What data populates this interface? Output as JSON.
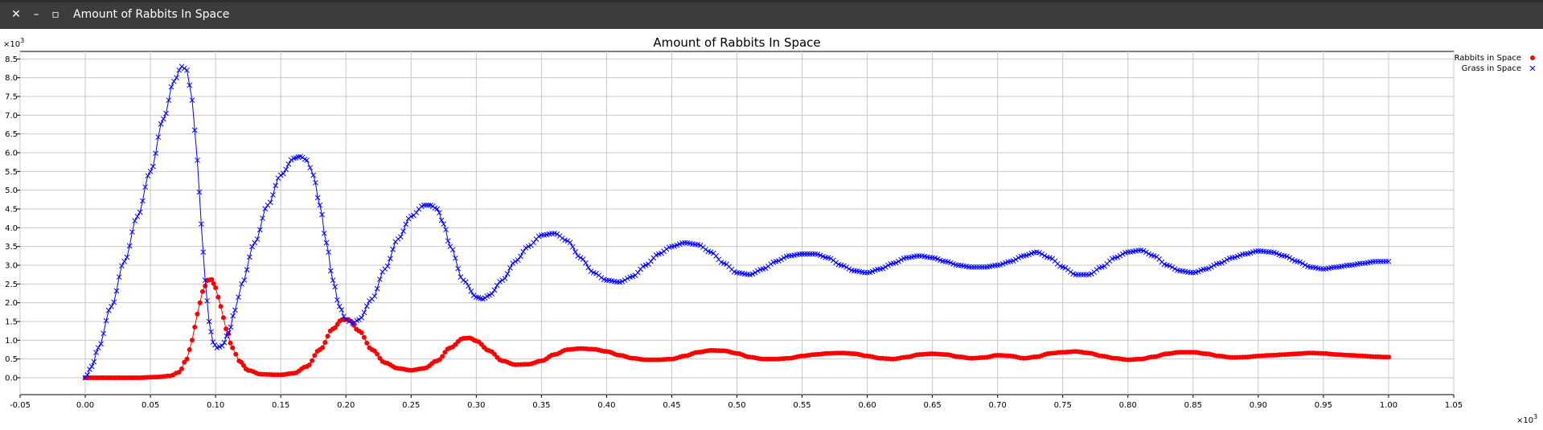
{
  "window": {
    "title": "Amount of Rabbits In Space",
    "close_icon": "close-icon",
    "minimize_icon": "minimize-icon",
    "maximize_icon": "maximize-icon"
  },
  "chart_data": {
    "type": "line",
    "title": "Amount of Rabbits In Space",
    "xlabel": "",
    "ylabel": "",
    "x_multiplier": "×10",
    "x_multiplier_exp": "3",
    "y_multiplier": "×10",
    "y_multiplier_exp": "3",
    "xlim": [
      -0.05,
      1.05
    ],
    "ylim": [
      -0.45,
      8.7
    ],
    "xticks": [
      "-0.05",
      "0.00",
      "0.05",
      "0.10",
      "0.15",
      "0.20",
      "0.25",
      "0.30",
      "0.35",
      "0.40",
      "0.45",
      "0.50",
      "0.55",
      "0.60",
      "0.65",
      "0.70",
      "0.75",
      "0.80",
      "0.85",
      "0.90",
      "0.95",
      "1.00",
      "1.05"
    ],
    "yticks": [
      "0.0",
      "0.5",
      "1.0",
      "1.5",
      "2.0",
      "2.5",
      "3.0",
      "3.5",
      "4.0",
      "4.5",
      "5.0",
      "5.5",
      "6.0",
      "6.5",
      "7.0",
      "7.5",
      "8.0",
      "8.5"
    ],
    "grid": true,
    "legend_position": "right",
    "series": [
      {
        "name": "Rabbits in Space",
        "color": "#ff0000",
        "marker": "circle",
        "x": [
          0.0,
          0.02,
          0.04,
          0.055,
          0.065,
          0.072,
          0.078,
          0.082,
          0.086,
          0.09,
          0.094,
          0.097,
          0.1,
          0.104,
          0.108,
          0.113,
          0.118,
          0.125,
          0.135,
          0.15,
          0.16,
          0.17,
          0.18,
          0.19,
          0.197,
          0.202,
          0.21,
          0.22,
          0.23,
          0.24,
          0.25,
          0.26,
          0.27,
          0.28,
          0.29,
          0.295,
          0.3,
          0.31,
          0.32,
          0.33,
          0.34,
          0.35,
          0.36,
          0.37,
          0.38,
          0.39,
          0.4,
          0.41,
          0.42,
          0.43,
          0.44,
          0.45,
          0.46,
          0.47,
          0.48,
          0.49,
          0.5,
          0.51,
          0.52,
          0.53,
          0.54,
          0.55,
          0.56,
          0.57,
          0.58,
          0.59,
          0.6,
          0.61,
          0.62,
          0.63,
          0.64,
          0.65,
          0.66,
          0.67,
          0.68,
          0.69,
          0.7,
          0.71,
          0.72,
          0.73,
          0.74,
          0.75,
          0.76,
          0.77,
          0.78,
          0.79,
          0.8,
          0.81,
          0.82,
          0.83,
          0.84,
          0.85,
          0.86,
          0.87,
          0.88,
          0.89,
          0.9,
          0.91,
          0.92,
          0.93,
          0.94,
          0.95,
          0.96,
          0.97,
          0.98,
          0.99,
          1.0
        ],
        "y": [
          0.0,
          0.0,
          0.0,
          0.02,
          0.05,
          0.15,
          0.5,
          1.0,
          1.7,
          2.3,
          2.6,
          2.62,
          2.4,
          1.9,
          1.3,
          0.8,
          0.45,
          0.2,
          0.09,
          0.08,
          0.12,
          0.3,
          0.75,
          1.3,
          1.55,
          1.55,
          1.25,
          0.75,
          0.4,
          0.25,
          0.2,
          0.25,
          0.45,
          0.8,
          1.05,
          1.06,
          0.98,
          0.72,
          0.45,
          0.35,
          0.36,
          0.45,
          0.62,
          0.75,
          0.78,
          0.76,
          0.7,
          0.6,
          0.52,
          0.48,
          0.48,
          0.5,
          0.58,
          0.68,
          0.73,
          0.72,
          0.65,
          0.55,
          0.5,
          0.5,
          0.52,
          0.58,
          0.62,
          0.65,
          0.66,
          0.64,
          0.58,
          0.52,
          0.5,
          0.55,
          0.62,
          0.64,
          0.62,
          0.56,
          0.52,
          0.54,
          0.6,
          0.58,
          0.52,
          0.56,
          0.65,
          0.68,
          0.7,
          0.66,
          0.58,
          0.52,
          0.48,
          0.5,
          0.56,
          0.64,
          0.68,
          0.68,
          0.64,
          0.58,
          0.54,
          0.55,
          0.58,
          0.6,
          0.62,
          0.64,
          0.66,
          0.65,
          0.62,
          0.6,
          0.58,
          0.56,
          0.55
        ]
      },
      {
        "name": "Grass in Space",
        "color": "#0000ff",
        "marker": "x",
        "x": [
          0.0,
          0.005,
          0.01,
          0.02,
          0.03,
          0.04,
          0.05,
          0.06,
          0.068,
          0.074,
          0.078,
          0.082,
          0.086,
          0.089,
          0.092,
          0.095,
          0.098,
          0.101,
          0.105,
          0.11,
          0.115,
          0.12,
          0.13,
          0.14,
          0.15,
          0.16,
          0.165,
          0.17,
          0.175,
          0.18,
          0.185,
          0.19,
          0.195,
          0.2,
          0.205,
          0.21,
          0.22,
          0.23,
          0.24,
          0.25,
          0.26,
          0.265,
          0.27,
          0.275,
          0.28,
          0.29,
          0.3,
          0.305,
          0.31,
          0.32,
          0.33,
          0.34,
          0.35,
          0.36,
          0.37,
          0.38,
          0.39,
          0.4,
          0.41,
          0.42,
          0.43,
          0.44,
          0.45,
          0.46,
          0.47,
          0.48,
          0.49,
          0.5,
          0.51,
          0.52,
          0.53,
          0.54,
          0.55,
          0.56,
          0.57,
          0.58,
          0.59,
          0.6,
          0.61,
          0.62,
          0.63,
          0.64,
          0.65,
          0.66,
          0.67,
          0.68,
          0.69,
          0.7,
          0.71,
          0.72,
          0.73,
          0.74,
          0.75,
          0.76,
          0.77,
          0.78,
          0.79,
          0.8,
          0.81,
          0.82,
          0.83,
          0.84,
          0.85,
          0.86,
          0.87,
          0.88,
          0.89,
          0.9,
          0.91,
          0.92,
          0.93,
          0.94,
          0.95,
          0.96,
          0.97,
          0.98,
          0.99,
          1.0
        ],
        "y": [
          0.0,
          0.3,
          0.8,
          1.9,
          3.1,
          4.3,
          5.5,
          6.9,
          7.9,
          8.3,
          8.2,
          7.4,
          5.8,
          4.1,
          2.6,
          1.5,
          0.95,
          0.8,
          0.85,
          1.2,
          1.8,
          2.5,
          3.6,
          4.6,
          5.4,
          5.85,
          5.9,
          5.8,
          5.4,
          4.6,
          3.6,
          2.6,
          1.9,
          1.55,
          1.45,
          1.55,
          2.1,
          2.9,
          3.7,
          4.3,
          4.6,
          4.6,
          4.5,
          4.1,
          3.5,
          2.6,
          2.15,
          2.1,
          2.2,
          2.6,
          3.1,
          3.5,
          3.8,
          3.85,
          3.65,
          3.2,
          2.8,
          2.6,
          2.55,
          2.7,
          3.0,
          3.3,
          3.5,
          3.6,
          3.55,
          3.35,
          3.05,
          2.8,
          2.75,
          2.9,
          3.1,
          3.25,
          3.3,
          3.3,
          3.2,
          3.0,
          2.85,
          2.8,
          2.9,
          3.05,
          3.2,
          3.25,
          3.2,
          3.1,
          3.0,
          2.95,
          2.95,
          3.0,
          3.1,
          3.25,
          3.35,
          3.2,
          2.95,
          2.75,
          2.75,
          2.95,
          3.2,
          3.35,
          3.4,
          3.25,
          3.0,
          2.85,
          2.8,
          2.9,
          3.05,
          3.2,
          3.3,
          3.38,
          3.35,
          3.25,
          3.1,
          2.95,
          2.9,
          2.95,
          3.0,
          3.05,
          3.1,
          3.1
        ]
      }
    ]
  }
}
